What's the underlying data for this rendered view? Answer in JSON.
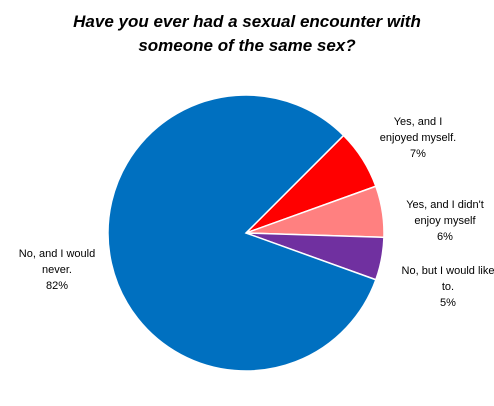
{
  "chart_data": {
    "type": "pie",
    "title": "Have you ever had a sexual encounter with someone of the same sex?",
    "categories": [
      "Yes, and I enjoyed myself.",
      "Yes, and I didn't enjoy myself",
      "No, but I would like to.",
      "No, and I would never."
    ],
    "values": [
      7,
      6,
      5,
      82
    ],
    "value_labels": [
      "7%",
      "6%",
      "5%",
      "82%"
    ],
    "colors": [
      "#ff0000",
      "#ff8080",
      "#7030a0",
      "#0070c0"
    ]
  }
}
